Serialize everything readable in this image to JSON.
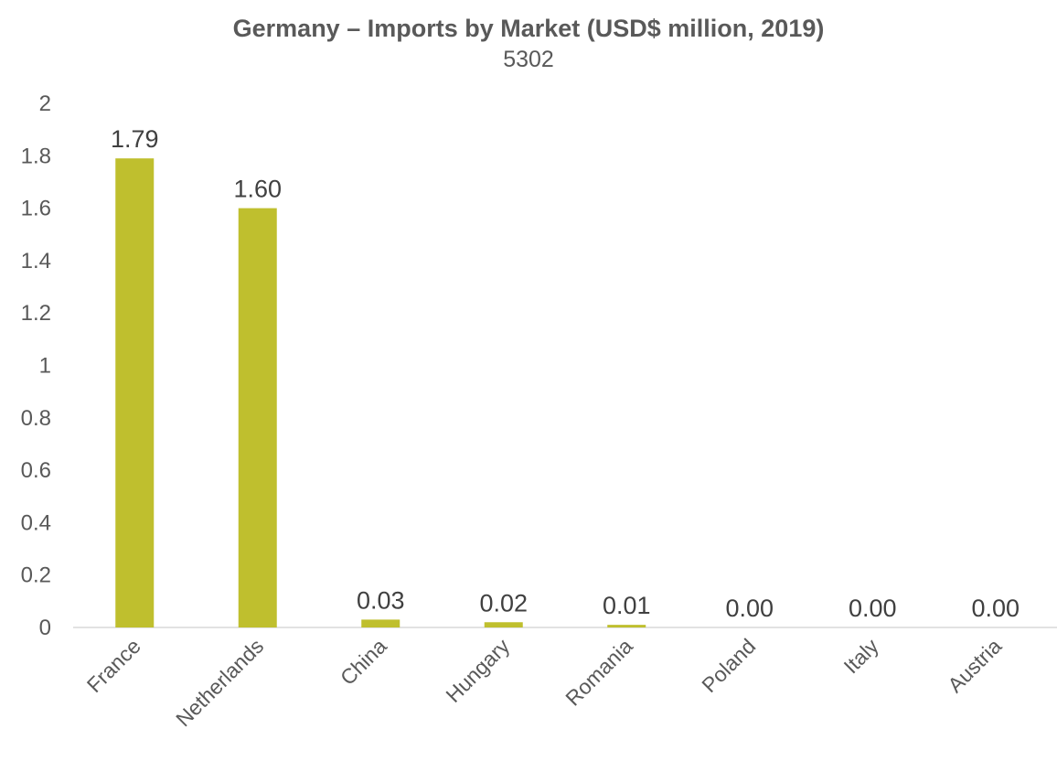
{
  "chart_data": {
    "type": "bar",
    "title": "Germany – Imports by Market (USD$ million, 2019)",
    "subtitle": "5302",
    "categories": [
      "France",
      "Netherlands",
      "China",
      "Hungary",
      "Romania",
      "Poland",
      "Italy",
      "Austria"
    ],
    "values": [
      1.79,
      1.6,
      0.03,
      0.02,
      0.01,
      0.0,
      0.0,
      0.0
    ],
    "data_labels": [
      "1.79",
      "1.60",
      "0.03",
      "0.02",
      "0.01",
      "0.00",
      "0.00",
      "0.00"
    ],
    "y_ticks": [
      "0",
      "0.2",
      "0.4",
      "0.6",
      "0.8",
      "1",
      "1.2",
      "1.4",
      "1.6",
      "1.8",
      "2"
    ],
    "ylim": [
      0,
      2
    ],
    "xlabel": "",
    "ylabel": "",
    "grid": false,
    "legend": "none",
    "bar_color": "#bfbf2e",
    "axis_color": "#d9d9d9"
  }
}
